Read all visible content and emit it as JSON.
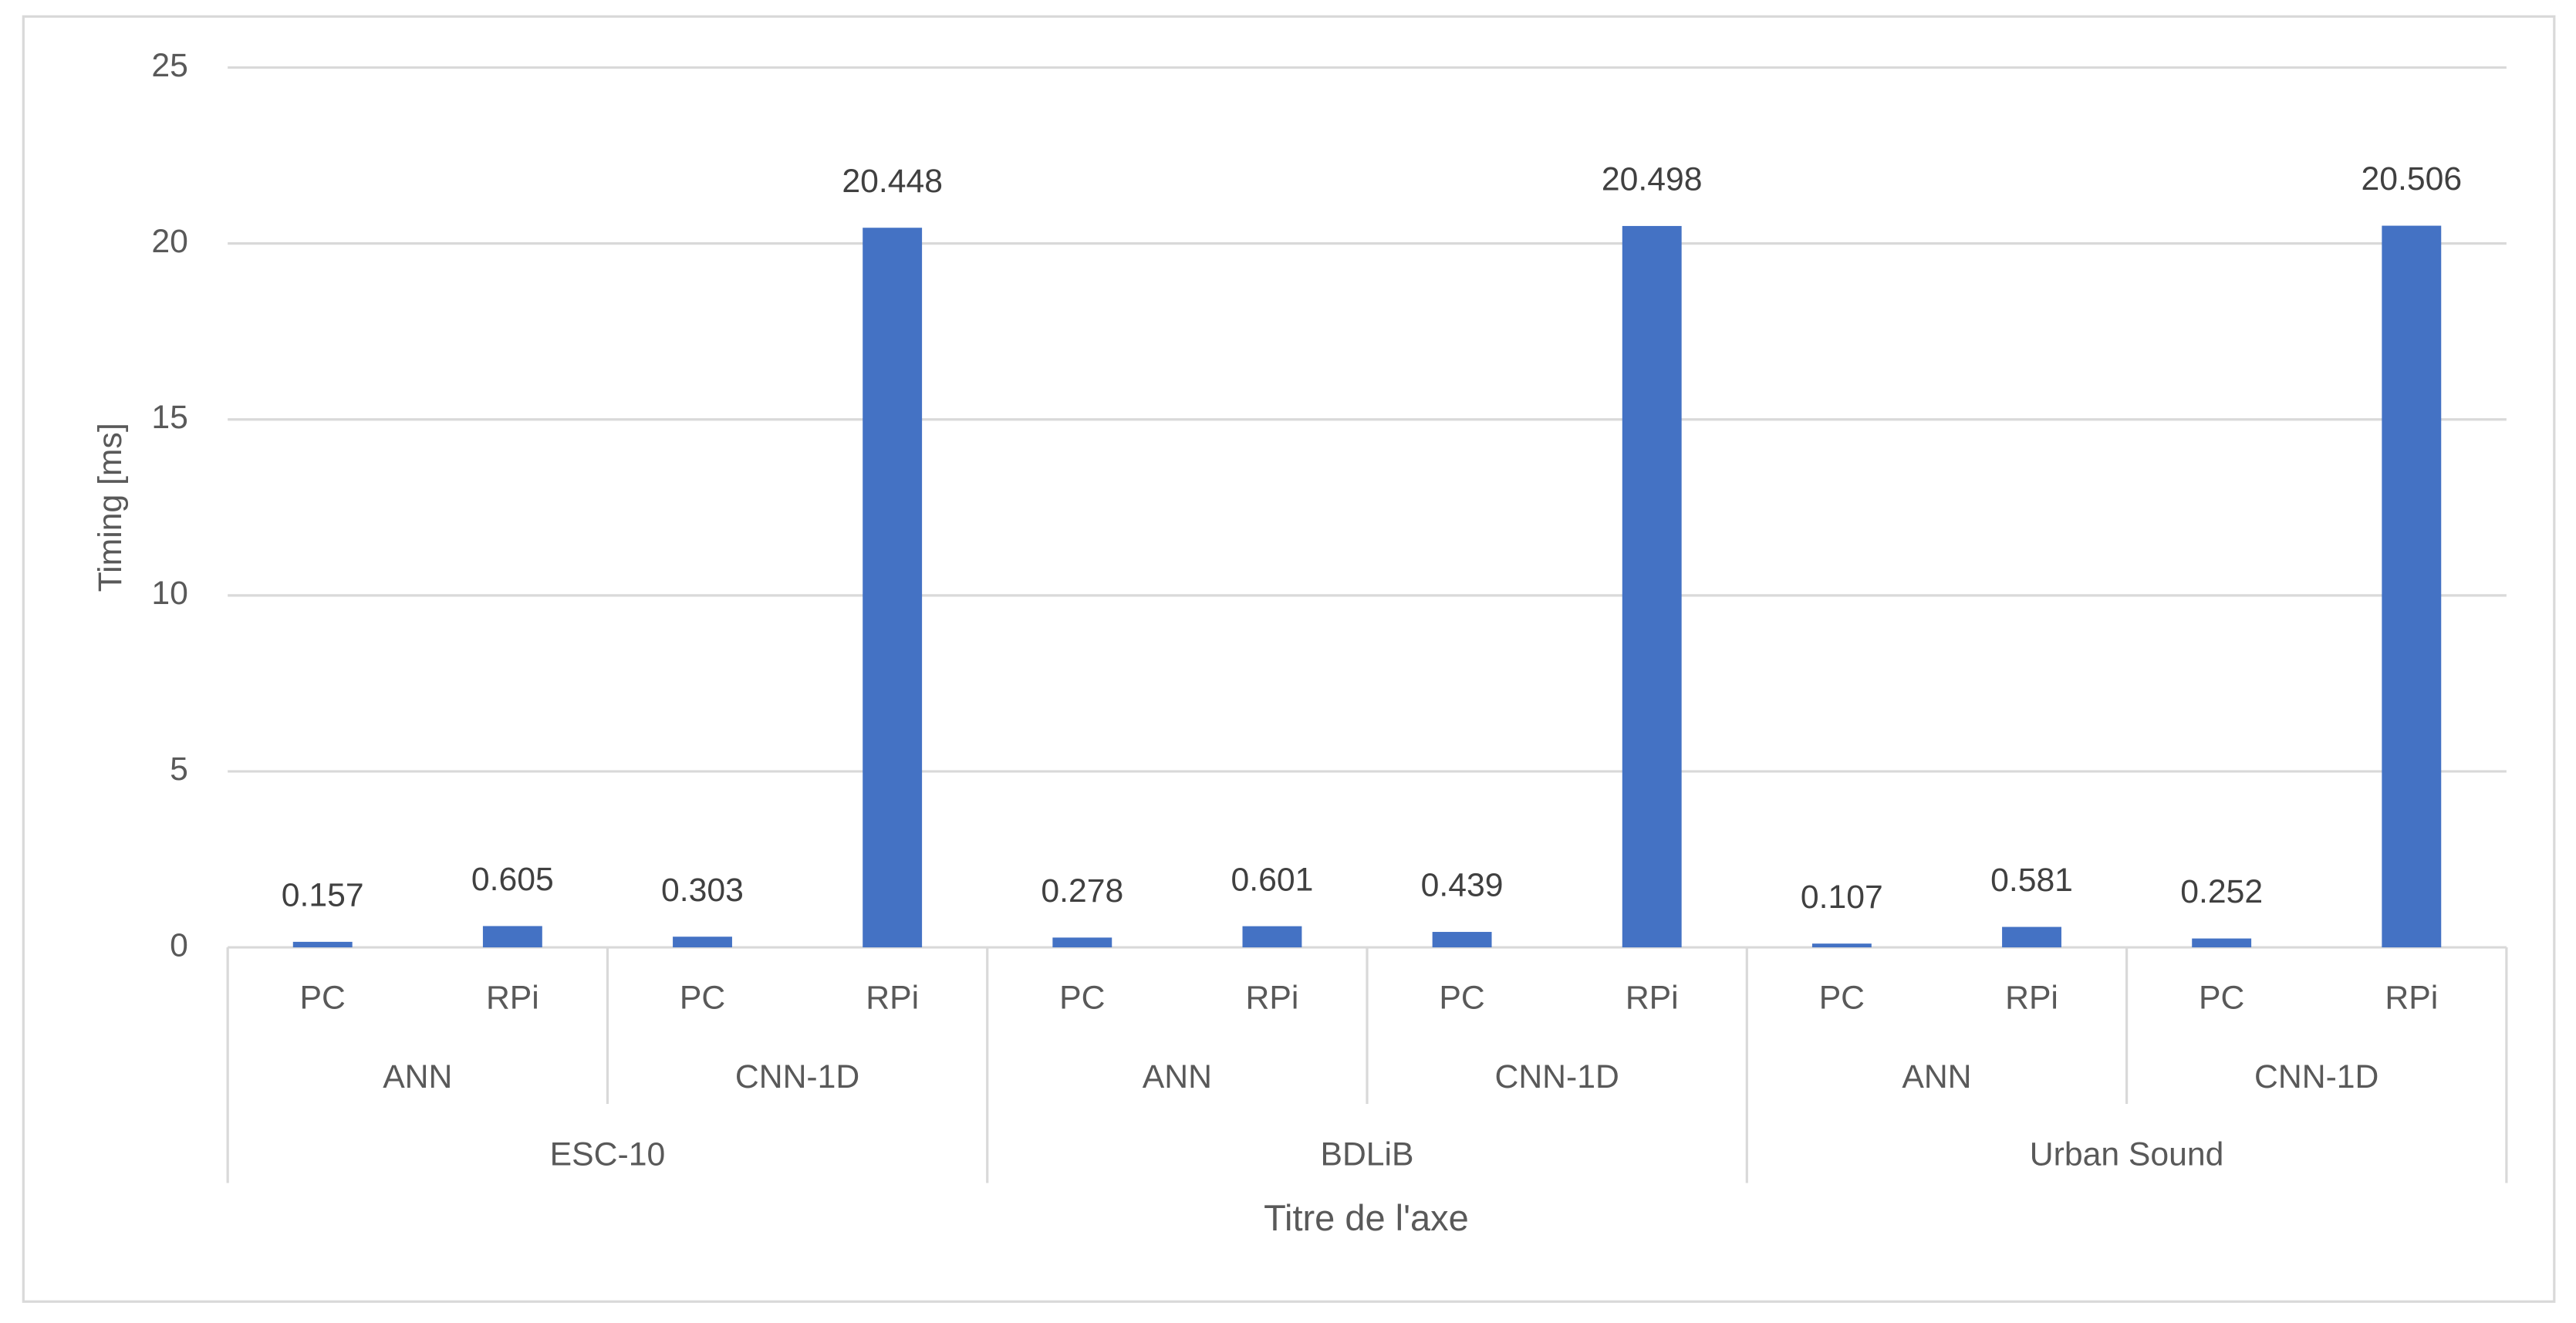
{
  "chart_data": {
    "type": "bar",
    "y_label": "Timing [ms]",
    "x_label": "Titre de l'axe",
    "categories": [
      "PC",
      "RPi",
      "PC",
      "RPi",
      "PC",
      "RPi",
      "PC",
      "RPi",
      "PC",
      "RPi",
      "PC",
      "RPi"
    ],
    "subgroups": [
      "ANN",
      "CNN-1D",
      "ANN",
      "CNN-1D",
      "ANN",
      "CNN-1D"
    ],
    "groups": [
      "ESC-10",
      "BDLiB",
      "Urban Sound"
    ],
    "values": [
      0.157,
      0.605,
      0.303,
      20.448,
      0.278,
      0.601,
      0.439,
      20.498,
      0.107,
      0.581,
      0.252,
      20.506
    ],
    "color": "#4472c4",
    "ylim": [
      0,
      25
    ],
    "yticks": [
      0,
      5,
      10,
      15,
      20,
      25
    ],
    "grid": true
  }
}
